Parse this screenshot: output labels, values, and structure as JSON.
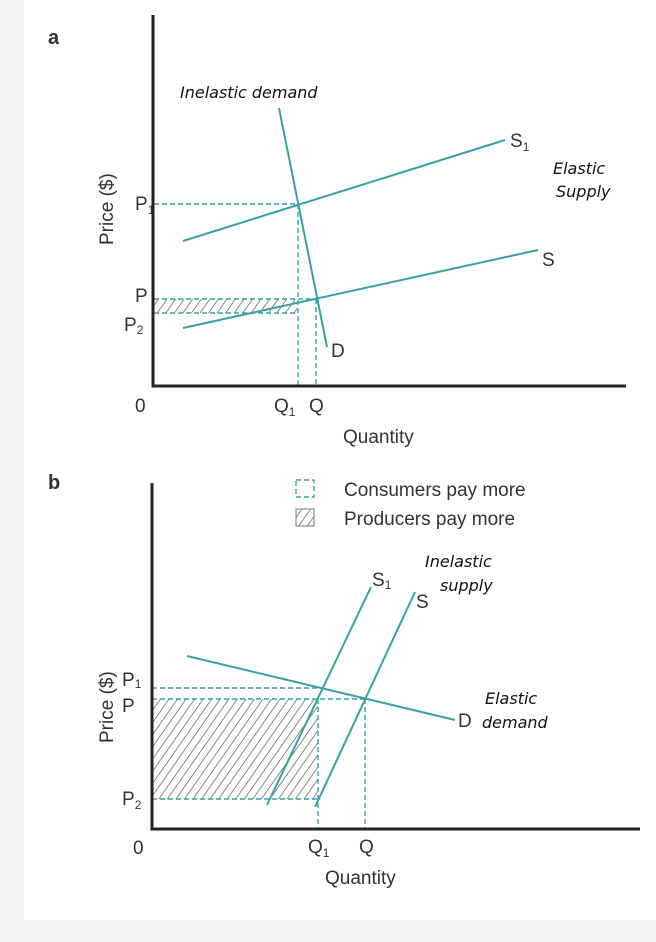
{
  "panel_a": {
    "label": "a",
    "y_axis": "Price ($)",
    "x_axis": "Quantity",
    "origin": "0",
    "price_labels": {
      "p1": "P",
      "p1_sub": "1",
      "p": "P",
      "p2": "P",
      "p2_sub": "2"
    },
    "quantity_labels": {
      "q1": "Q",
      "q1_sub": "1",
      "q": "Q"
    },
    "curves": {
      "s1": "S",
      "s1_sub": "1",
      "s": "S",
      "d": "D"
    },
    "annotations": {
      "demand": "Inelastic demand",
      "supply_line1": "Elastic",
      "supply_line2": "Supply"
    }
  },
  "panel_b": {
    "label": "b",
    "y_axis": "Price ($)",
    "x_axis": "Quantity",
    "origin": "0",
    "price_labels": {
      "p1": "P",
      "p1_sub": "1",
      "p": "P",
      "p2": "P",
      "p2_sub": "2"
    },
    "quantity_labels": {
      "q1": "Q",
      "q1_sub": "1",
      "q": "Q"
    },
    "curves": {
      "s1": "S",
      "s1_sub": "1",
      "s": "S",
      "d": "D"
    },
    "annotations": {
      "supply_line1": "Inelastic",
      "supply_line2": "supply",
      "demand_line1": "Elastic",
      "demand_line2": "demand"
    }
  },
  "legend": {
    "consumers": "Consumers pay more",
    "producers": "Producers pay more"
  },
  "colors": {
    "curve": "#3a9fa6",
    "hatch": "#555555",
    "axis": "#222222"
  }
}
